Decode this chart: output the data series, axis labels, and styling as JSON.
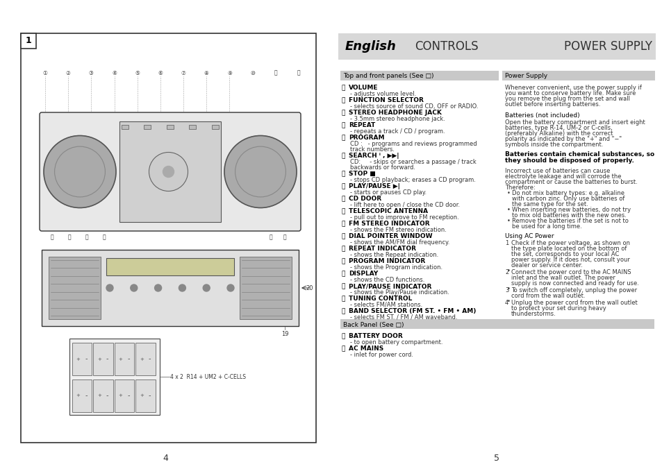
{
  "bg_color": "#ffffff",
  "header_bg": "#d8d8d8",
  "section_bar_bg": "#d0d0d0",
  "page_bg": "#f5f5f5",
  "header": {
    "english": "English",
    "controls": "CONTROLS",
    "power_supply": "POWER SUPPLY"
  },
  "left_panel": {
    "box_number": "1",
    "battery_label": "4 x 2  R14 + UM2 + C-CELLS"
  },
  "right_col1_header": "Top and front panels (See □)",
  "right_col2_header": "Power Supply",
  "controls": [
    {
      "num": "ⓘ",
      "bold": "VOLUME",
      "text": "- adjusts volume level."
    },
    {
      "num": "ⓙ",
      "bold": "FUNCTION SELECTOR",
      "text": "- selects source of sound CD, OFF or RADIO."
    },
    {
      "num": "ⓚ",
      "bold": "STEREO HEADPHONE JACK",
      "text": "- 3.5mm stereo headphone jack."
    },
    {
      "num": "ⓛ",
      "bold": "REPEAT",
      "text": "- repeats a track / CD / program."
    },
    {
      "num": "ⓜ",
      "bold": "PROGRAM",
      "text": "CD :   - programs and reviews programmed\n              track numbers."
    },
    {
      "num": "ⓝ",
      "bold": "SEARCH ᑊ , ▶▶|",
      "text": "CD:     - skips or searches a passage / track\n              backwards or forward."
    },
    {
      "num": "ⓞ",
      "bold": "STOP ■",
      "text": "- stops CD playback; erases a CD program."
    },
    {
      "num": "ⓟ",
      "bold": "PLAY/PAUSE ▶|",
      "text": "- starts or pauses CD play."
    },
    {
      "num": "ⓠ",
      "bold": "CD DOOR",
      "text": "- lift here to open / close the CD door."
    },
    {
      "num": "ⓡ",
      "bold": "TELESCOPIC ANTENNA",
      "text": "- pull out to improve to FM reception."
    },
    {
      "num": "ⓢ",
      "bold": "FM STEREO INDICATOR",
      "text": "- shows the FM stereo indication."
    },
    {
      "num": "ⓣ",
      "bold": "DIAL POINTER WINDOW",
      "text": "- shows the AM/FM dial frequency."
    },
    {
      "num": "ⓤ",
      "bold": "REPEAT INDICATOR",
      "text": "- shows the Repeat indication."
    },
    {
      "num": "ⓥ",
      "bold": "PROGRAM INDICATOR",
      "text": "- shows the Program indication."
    },
    {
      "num": "ⓦ",
      "bold": "DISPLAY",
      "text": "- shows the CD functions."
    },
    {
      "num": "ⓧ",
      "bold": "PLAY/PAUSE INDICATOR",
      "text": "- shows the Play/Pause indication."
    },
    {
      "num": "ⓨ",
      "bold": "TUNING CONTROL",
      "text": "- selects FM/AM stations."
    },
    {
      "num": "ⓩ",
      "bold": "BAND SELECTOR (FM ST. • FM • AM)",
      "text": "- selects FM ST. / FM / AM waveband."
    }
  ],
  "back_panel_header": "Back Panel (See □)",
  "back_panel_controls": [
    {
      "num": "⓪",
      "bold": "BATTERY DOOR",
      "text": "- to open battery compartment."
    },
    {
      "num": "⑪",
      "bold": "AC MAINS",
      "text": "- inlet for power cord."
    }
  ],
  "power_supply_text": "Whenever convenient, use the power supply if you want to conserve battery life. Make sure you remove the plug from the set and wall outlet before inserting batteries.",
  "batteries_header": "Batteries (not included)",
  "batteries_text": "Open the battery compartment and insert eight batteries, type R-14, UM-2 or C-cells, (preferably Alkaline) with the correct polarity as indicated by the \"+\" and \"−\" symbols inside the compartment.",
  "batteries_warning_bold": "Batteries contain chemical substances, so they should be disposed of properly.",
  "batteries_incorrect": "Incorrect use of batteries can cause electrolyte leakage and will corrode the compartment or cause the batteries to burst. Therefore:",
  "batteries_bullets": [
    "Do not mix battery types: e.g. alkaline with carbon zinc. Only use batteries of the same type for the set.",
    "When inserting new batteries, do not try to mix old batteries with the new ones.",
    "Remove the batteries if the set is not to be used for a long time."
  ],
  "ac_power_header": "Using AC Power",
  "ac_power_items": [
    "Check if the power voltage, as shown on the type plate located on the bottom of the set, corresponds to your local AC power supply. If it does not, consult your dealer or service center.",
    "Connect the power cord to the AC MAINS inlet and the wall outlet. The power supply is now connected and ready for use.",
    "To switch off completely, unplug the power cord from the wall outlet.",
    "Unplug the power cord from the wall outlet to protect your set during heavy thunderstorms."
  ],
  "page_numbers": [
    "4",
    "5"
  ]
}
